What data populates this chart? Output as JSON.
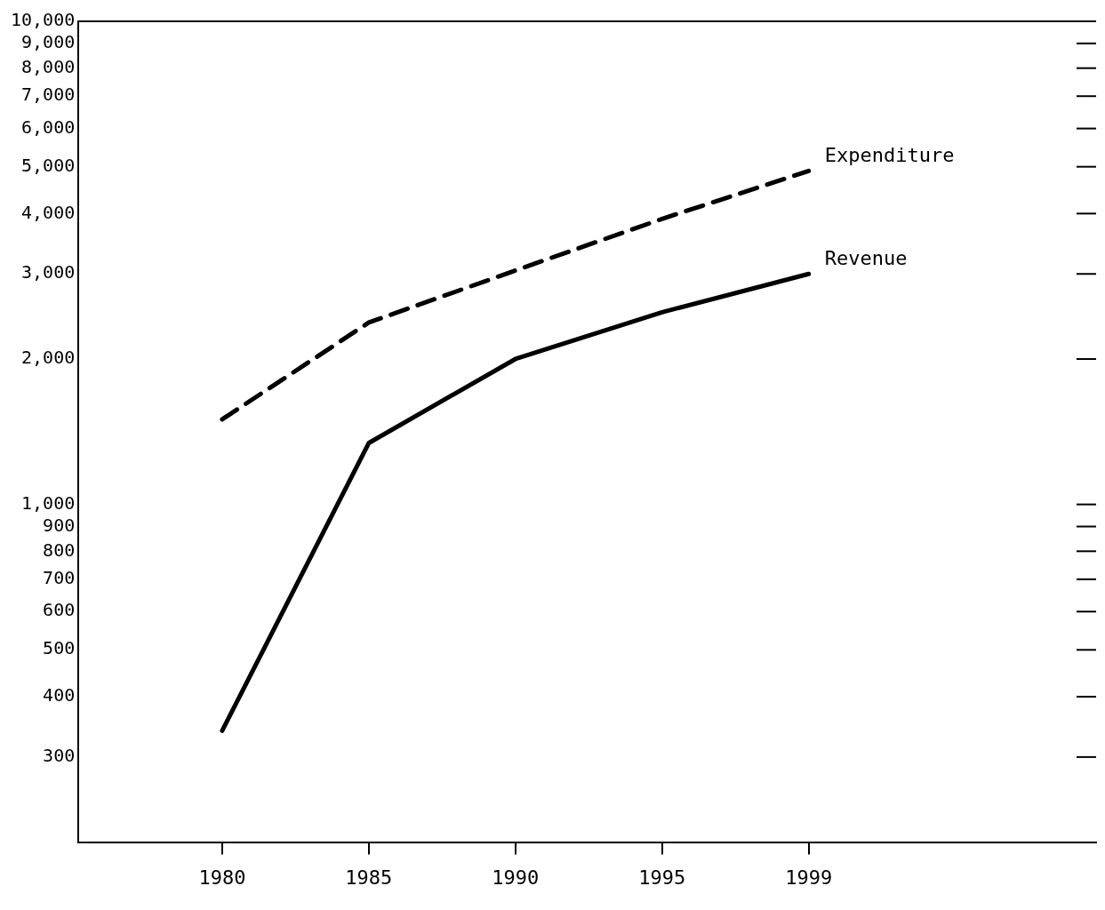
{
  "chart_data": {
    "type": "line",
    "categories": [
      "1980",
      "1985",
      "1990",
      "1995",
      "1999"
    ],
    "series": [
      {
        "name": "Expenditure",
        "color": "#000000",
        "line_style": "dashed",
        "values": [
          1500,
          2380,
          3050,
          3900,
          4900
        ]
      },
      {
        "name": "Revenue",
        "color": "#000000",
        "line_style": "solid",
        "values": [
          340,
          1340,
          2000,
          2500,
          3000
        ]
      }
    ],
    "log": "y",
    "ylim": [
      200,
      10000
    ],
    "yticks": [
      300,
      400,
      500,
      600,
      700,
      800,
      900,
      {
        "value": 1000,
        "label": "1,000"
      },
      {
        "value": 2000,
        "label": "2,000"
      },
      {
        "value": 3000,
        "label": "3,000"
      },
      {
        "value": 4000,
        "label": "4,000"
      },
      {
        "value": 5000,
        "label": "5,000"
      },
      {
        "value": 6000,
        "label": "6,000"
      },
      {
        "value": 7000,
        "label": "7,000"
      },
      {
        "value": 8000,
        "label": "8,000"
      },
      {
        "value": 9000,
        "label": "9,000"
      },
      {
        "value": 10000,
        "label": "10,000"
      }
    ],
    "grid": false,
    "legend": false,
    "marker": "none"
  }
}
